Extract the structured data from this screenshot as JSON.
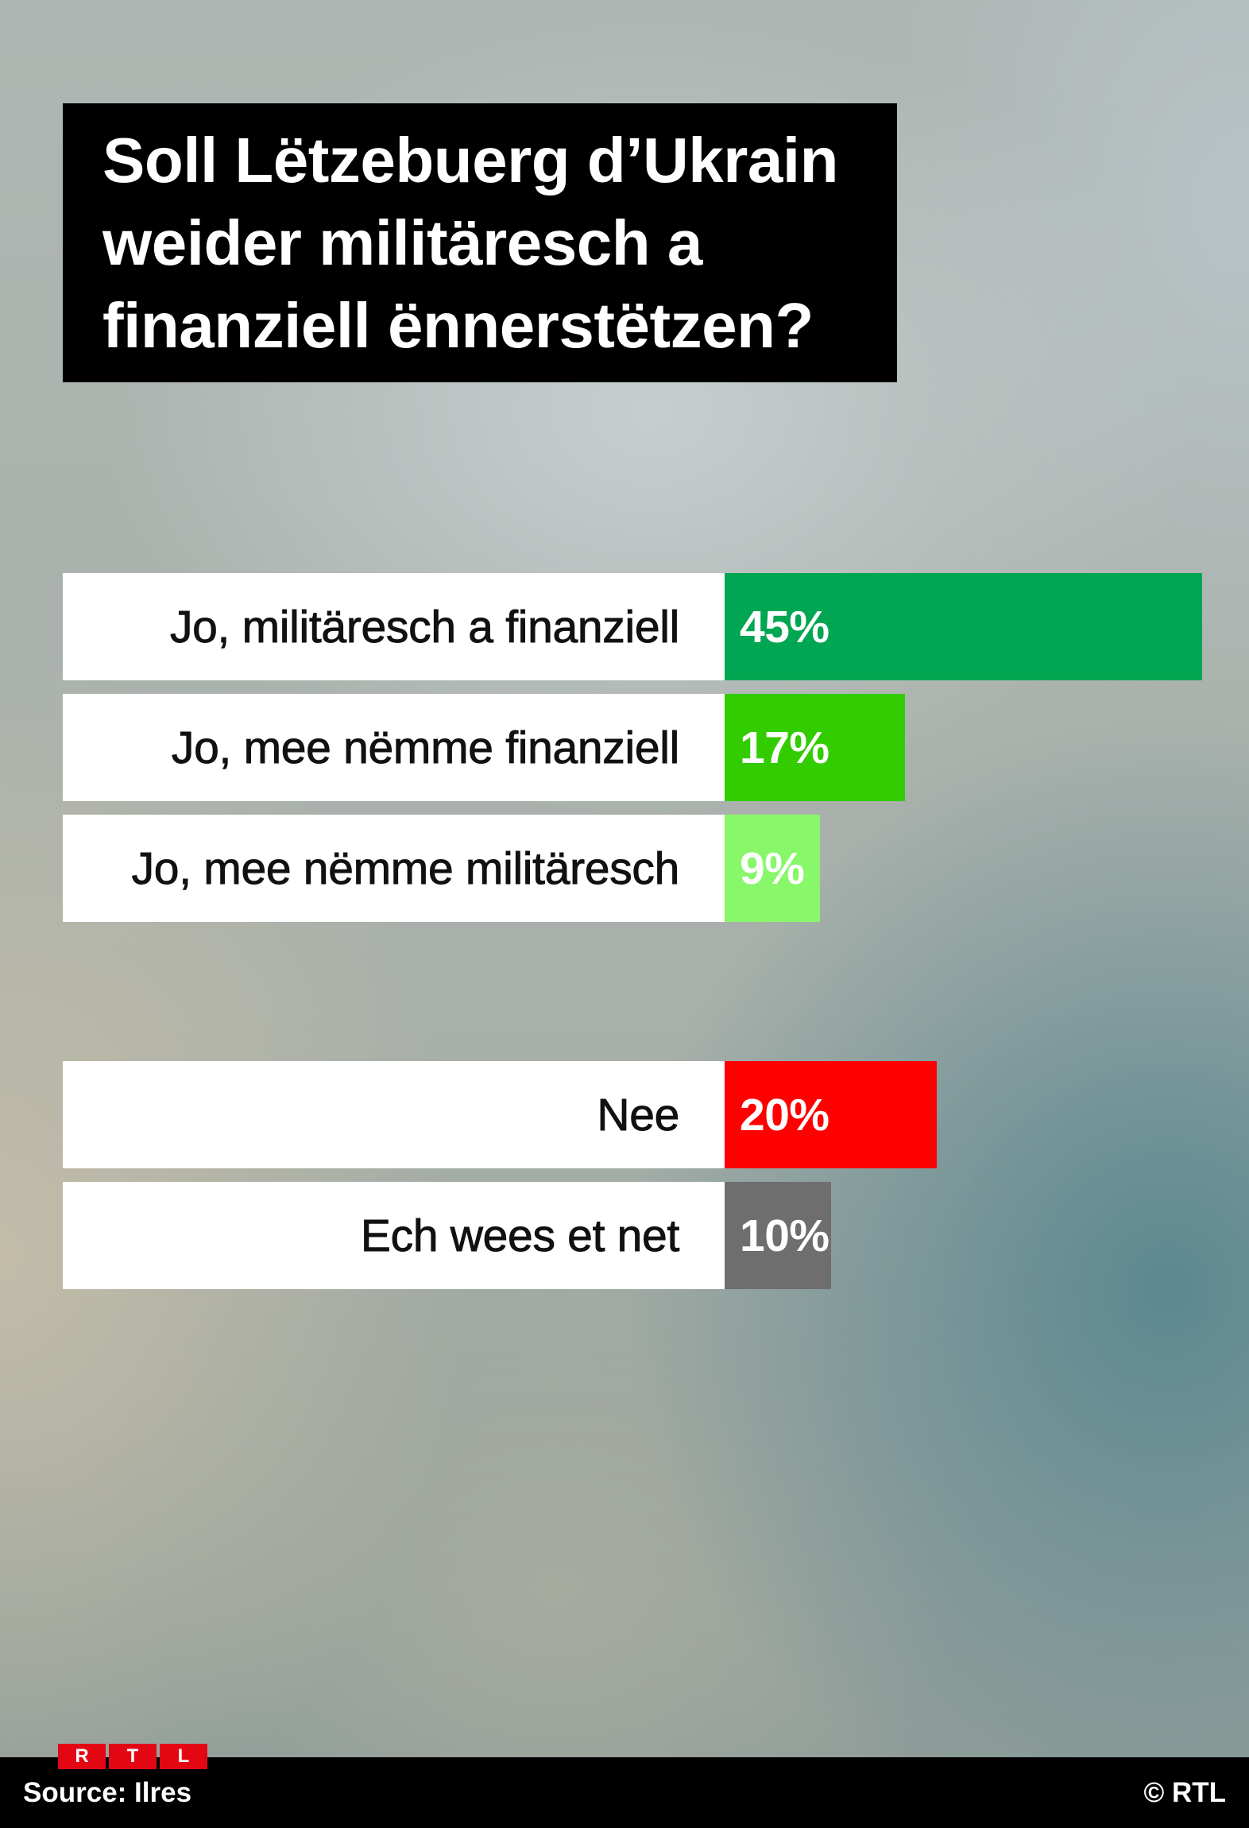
{
  "chart_data": {
    "type": "bar",
    "orientation": "horizontal",
    "title": "Soll Lëtzebuerg d’Ukrain weider militäresch a finanziell ënnerstëtzen?",
    "categories": [
      "Jo, militäresch a finanziell",
      "Jo, mee nëmme finanziell",
      "Jo, mee nëmme militäresch",
      "Nee",
      "Ech wees et net"
    ],
    "values": [
      45,
      17,
      9,
      20,
      10
    ],
    "value_labels": [
      "45%",
      "17%",
      "9%",
      "20%",
      "10%"
    ],
    "colors": [
      "#00a651",
      "#33cc00",
      "#88f76a",
      "#ff0000",
      "#6e6e6e"
    ],
    "groups": [
      [
        0,
        1,
        2
      ],
      [
        3,
        4
      ]
    ],
    "xlabel": "",
    "ylabel": "",
    "grid": false,
    "legend": "none"
  },
  "logo": {
    "letters": [
      "R",
      "T",
      "L"
    ],
    "color": "#e30613"
  },
  "footer": {
    "source": "Source: Ilres",
    "copyright": "© RTL"
  }
}
